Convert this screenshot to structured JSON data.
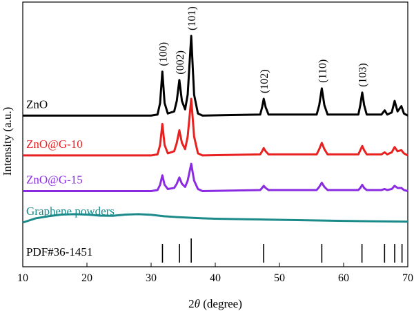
{
  "chart_data": {
    "type": "line",
    "title": "",
    "xlabel": "2θ (degree)",
    "ylabel": "Intensity (a.u.)",
    "xlim": [
      10,
      70
    ],
    "x_ticks": [
      "10",
      "20",
      "30",
      "40",
      "50",
      "60",
      "70"
    ],
    "grid": false,
    "stacked_offset": true,
    "series": [
      {
        "name": "ZnO",
        "color": "#000000",
        "baseline": 0.62,
        "points": [
          [
            10,
            0.62
          ],
          [
            30,
            0.62
          ],
          [
            31,
            0.625
          ],
          [
            31.4,
            0.68
          ],
          [
            31.75,
            0.83
          ],
          [
            32.1,
            0.68
          ],
          [
            32.6,
            0.63
          ],
          [
            33.6,
            0.64
          ],
          [
            34.0,
            0.69
          ],
          [
            34.4,
            0.79
          ],
          [
            34.8,
            0.69
          ],
          [
            35.3,
            0.65
          ],
          [
            35.7,
            0.72
          ],
          [
            36.25,
            1.0
          ],
          [
            36.7,
            0.72
          ],
          [
            37.3,
            0.63
          ],
          [
            38,
            0.62
          ],
          [
            47,
            0.625
          ],
          [
            47.3,
            0.66
          ],
          [
            47.55,
            0.7
          ],
          [
            47.85,
            0.66
          ],
          [
            48.3,
            0.625
          ],
          [
            55.8,
            0.625
          ],
          [
            56.2,
            0.67
          ],
          [
            56.6,
            0.75
          ],
          [
            57.0,
            0.67
          ],
          [
            57.5,
            0.625
          ],
          [
            62.3,
            0.625
          ],
          [
            62.6,
            0.67
          ],
          [
            62.9,
            0.73
          ],
          [
            63.2,
            0.67
          ],
          [
            63.6,
            0.625
          ],
          [
            65.9,
            0.625
          ],
          [
            66.4,
            0.645
          ],
          [
            66.8,
            0.625
          ],
          [
            67.5,
            0.635
          ],
          [
            67.95,
            0.69
          ],
          [
            68.4,
            0.64
          ],
          [
            69.0,
            0.665
          ],
          [
            69.4,
            0.63
          ],
          [
            70,
            0.62
          ]
        ]
      },
      {
        "name": "ZnO@G-10",
        "color": "#e82020",
        "baseline": 0.43,
        "points": [
          [
            10,
            0.43
          ],
          [
            30,
            0.43
          ],
          [
            31,
            0.435
          ],
          [
            31.4,
            0.48
          ],
          [
            31.75,
            0.58
          ],
          [
            32.1,
            0.48
          ],
          [
            32.6,
            0.44
          ],
          [
            33.6,
            0.45
          ],
          [
            34.0,
            0.49
          ],
          [
            34.4,
            0.55
          ],
          [
            34.8,
            0.49
          ],
          [
            35.3,
            0.46
          ],
          [
            35.7,
            0.52
          ],
          [
            36.25,
            0.7
          ],
          [
            36.7,
            0.52
          ],
          [
            37.3,
            0.44
          ],
          [
            38,
            0.43
          ],
          [
            47,
            0.435
          ],
          [
            47.3,
            0.45
          ],
          [
            47.55,
            0.465
          ],
          [
            47.85,
            0.45
          ],
          [
            48.3,
            0.435
          ],
          [
            55.8,
            0.435
          ],
          [
            56.2,
            0.46
          ],
          [
            56.6,
            0.49
          ],
          [
            57.0,
            0.46
          ],
          [
            57.5,
            0.435
          ],
          [
            62.3,
            0.435
          ],
          [
            62.6,
            0.455
          ],
          [
            62.9,
            0.475
          ],
          [
            63.2,
            0.455
          ],
          [
            63.6,
            0.435
          ],
          [
            65.9,
            0.435
          ],
          [
            66.4,
            0.445
          ],
          [
            66.8,
            0.435
          ],
          [
            67.5,
            0.445
          ],
          [
            67.95,
            0.47
          ],
          [
            68.4,
            0.45
          ],
          [
            69.0,
            0.455
          ],
          [
            69.4,
            0.44
          ],
          [
            70,
            0.43
          ]
        ]
      },
      {
        "name": "ZnO@G-15",
        "color": "#8a2be2",
        "baseline": 0.26,
        "points": [
          [
            10,
            0.26
          ],
          [
            30,
            0.26
          ],
          [
            31,
            0.265
          ],
          [
            31.4,
            0.29
          ],
          [
            31.75,
            0.335
          ],
          [
            32.1,
            0.29
          ],
          [
            32.6,
            0.27
          ],
          [
            33.6,
            0.275
          ],
          [
            34.0,
            0.295
          ],
          [
            34.4,
            0.325
          ],
          [
            34.8,
            0.295
          ],
          [
            35.3,
            0.28
          ],
          [
            35.7,
            0.31
          ],
          [
            36.25,
            0.39
          ],
          [
            36.7,
            0.31
          ],
          [
            37.3,
            0.27
          ],
          [
            38,
            0.26
          ],
          [
            47,
            0.265
          ],
          [
            47.3,
            0.275
          ],
          [
            47.55,
            0.285
          ],
          [
            47.85,
            0.275
          ],
          [
            48.3,
            0.265
          ],
          [
            55.8,
            0.265
          ],
          [
            56.2,
            0.28
          ],
          [
            56.6,
            0.3
          ],
          [
            57.0,
            0.28
          ],
          [
            57.5,
            0.265
          ],
          [
            62.3,
            0.265
          ],
          [
            62.6,
            0.275
          ],
          [
            62.9,
            0.29
          ],
          [
            63.2,
            0.275
          ],
          [
            63.6,
            0.265
          ],
          [
            65.9,
            0.265
          ],
          [
            66.4,
            0.27
          ],
          [
            66.8,
            0.265
          ],
          [
            67.5,
            0.27
          ],
          [
            67.95,
            0.285
          ],
          [
            68.4,
            0.275
          ],
          [
            69.0,
            0.275
          ],
          [
            69.4,
            0.265
          ],
          [
            70,
            0.26
          ]
        ]
      },
      {
        "name": "Graphene powders",
        "color": "#1a8a8a",
        "baseline": 0.11,
        "points": [
          [
            10,
            0.11
          ],
          [
            12,
            0.13
          ],
          [
            14,
            0.14
          ],
          [
            16,
            0.148
          ],
          [
            18,
            0.15
          ],
          [
            20,
            0.148
          ],
          [
            22,
            0.143
          ],
          [
            24,
            0.142
          ],
          [
            26,
            0.148
          ],
          [
            28,
            0.15
          ],
          [
            30,
            0.147
          ],
          [
            32,
            0.14
          ],
          [
            34,
            0.136
          ],
          [
            36,
            0.133
          ],
          [
            38,
            0.13
          ],
          [
            40,
            0.128
          ],
          [
            44,
            0.126
          ],
          [
            48,
            0.124
          ],
          [
            52,
            0.122
          ],
          [
            56,
            0.12
          ],
          [
            60,
            0.118
          ],
          [
            64,
            0.116
          ],
          [
            68,
            0.115
          ],
          [
            70,
            0.114
          ]
        ]
      }
    ],
    "reference": {
      "name": "PDF#36-1451",
      "lines": [
        {
          "x": 31.77,
          "intensity": 0.57
        },
        {
          "x": 34.42,
          "intensity": 0.44
        },
        {
          "x": 36.25,
          "intensity": 1.0
        },
        {
          "x": 47.54,
          "intensity": 0.23
        },
        {
          "x": 56.6,
          "intensity": 0.32
        },
        {
          "x": 62.86,
          "intensity": 0.29
        },
        {
          "x": 66.38,
          "intensity": 0.04
        },
        {
          "x": 67.96,
          "intensity": 0.23
        },
        {
          "x": 69.1,
          "intensity": 0.11
        }
      ]
    },
    "peak_labels": [
      {
        "text": "(100)",
        "x": 31.77,
        "anchor_y": 0.83
      },
      {
        "text": "(002)",
        "x": 34.42,
        "anchor_y": 0.79
      },
      {
        "text": "(101)",
        "x": 36.25,
        "anchor_y": 1.0
      },
      {
        "text": "(102)",
        "x": 47.54,
        "anchor_y": 0.7
      },
      {
        "text": "(110)",
        "x": 56.6,
        "anchor_y": 0.75
      },
      {
        "text": "(103)",
        "x": 62.86,
        "anchor_y": 0.73
      }
    ]
  }
}
